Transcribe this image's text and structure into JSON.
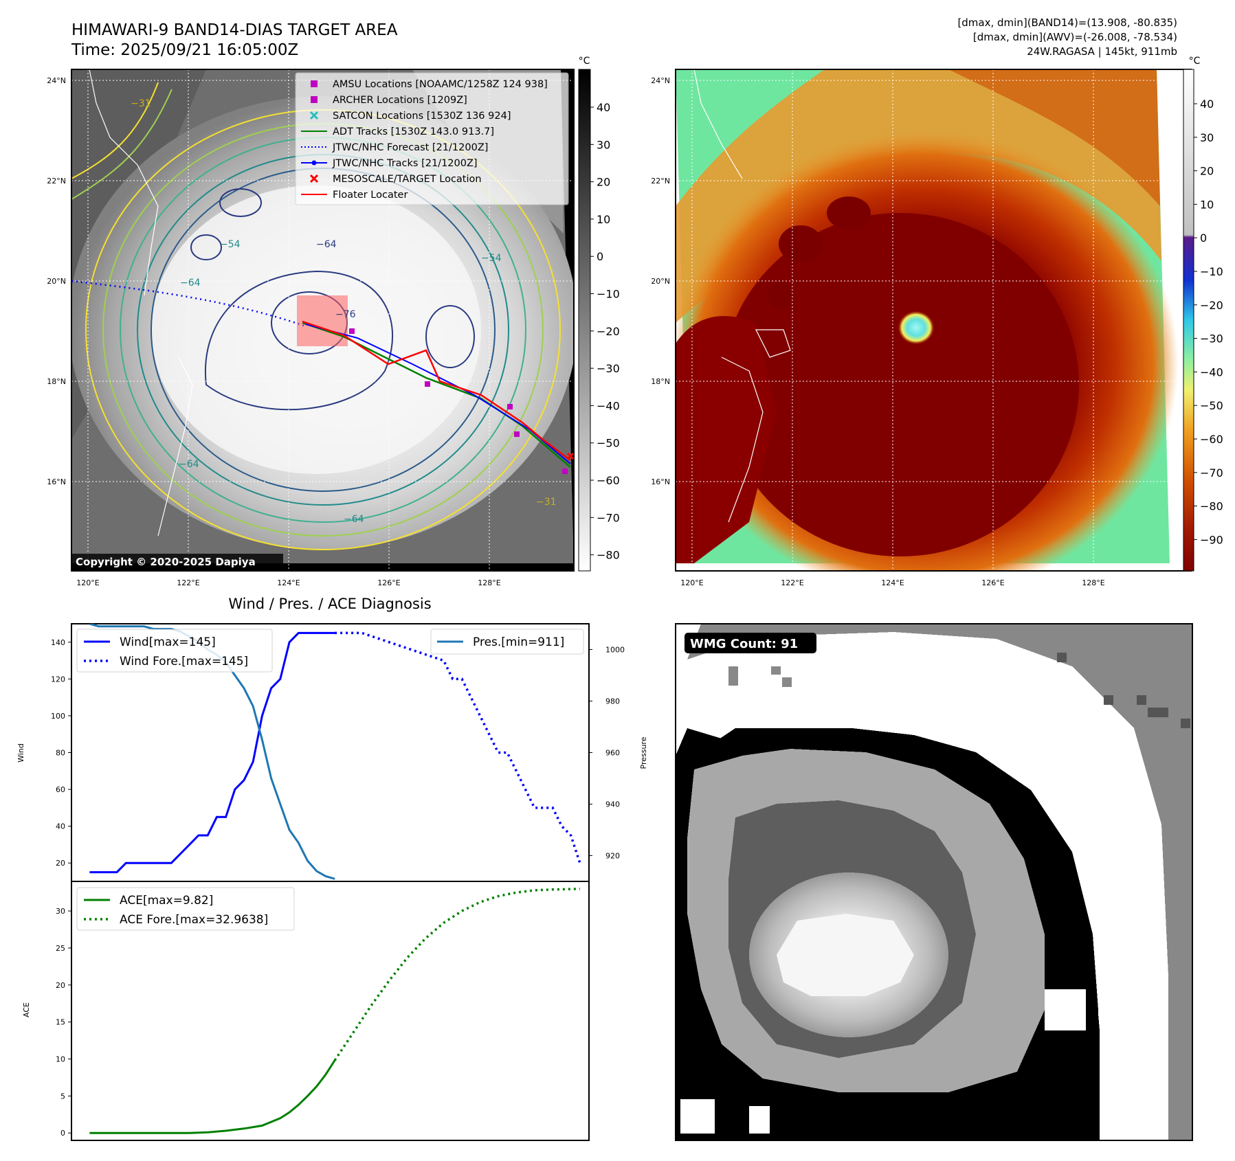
{
  "header": {
    "title_line1": "HIMAWARI-9 BAND14-DIAS TARGET AREA",
    "title_line2": "Time: 2025/09/21 16:05:00Z",
    "info_line1": "[dmax, dmin](BAND14)=(13.908, -80.835)",
    "info_line2": "[dmax, dmin](AWV)=(-26.008, -78.534)",
    "info_line3": "24W.RAGASA | 145kt, 911mb"
  },
  "ir_panel": {
    "colorbar_unit": "°C",
    "colorbar_ticks": [
      "40",
      "30",
      "20",
      "10",
      "0",
      "−10",
      "−20",
      "−30",
      "−40",
      "−50",
      "−60",
      "−70",
      "−80"
    ],
    "lat_labels": [
      "24°N",
      "22°N",
      "20°N",
      "18°N",
      "16°N"
    ],
    "lon_labels": [
      "120°E",
      "122°E",
      "124°E",
      "126°E",
      "128°E"
    ],
    "contour_labels": [
      "−64",
      "−76",
      "−64",
      "−64",
      "−31",
      "−31",
      "−54",
      "−54",
      "−64"
    ],
    "copyright": "Copyright © 2020-2025 Dapiya",
    "legend": [
      {
        "label": "AMSU Locations [NOAAMC/1258Z 124 938]",
        "marker": "square",
        "color": "#c000c0"
      },
      {
        "label": "ARCHER Locations [1209Z]",
        "marker": "square",
        "color": "#c000c0"
      },
      {
        "label": "SATCON Locations [1530Z 136 924]",
        "marker": "x",
        "color": "#20c0c0"
      },
      {
        "label": "ADT Tracks [1530Z 143.0 913.7]",
        "marker": "line",
        "color": "#008000"
      },
      {
        "label": "JTWC/NHC Forecast [21/1200Z]",
        "marker": "dotted",
        "color": "#0000ff"
      },
      {
        "label": "JTWC/NHC Tracks [21/1200Z]",
        "marker": "dotline",
        "color": "#0000ff"
      },
      {
        "label": "MESOSCALE/TARGET Location",
        "marker": "x",
        "color": "#ff0000"
      },
      {
        "label": "Floater Locater",
        "marker": "line",
        "color": "#ff0000"
      }
    ]
  },
  "awv_panel": {
    "colorbar_unit": "°C",
    "colorbar_ticks": [
      "40",
      "30",
      "20",
      "10",
      "0",
      "−10",
      "−20",
      "−30",
      "−40",
      "−50",
      "−60",
      "−70",
      "−80",
      "−90"
    ],
    "lat_labels": [
      "24°N",
      "22°N",
      "20°N",
      "18°N",
      "16°N"
    ],
    "lon_labels": [
      "120°E",
      "122°E",
      "124°E",
      "126°E",
      "128°E"
    ]
  },
  "diag_panel": {
    "title": "Wind / Pres. / ACE Diagnosis",
    "wind_ylabel": "Wind",
    "pres_ylabel": "Pressure",
    "ace_ylabel": "ACE",
    "wind_legend": "Wind[max=145]",
    "wind_fore_legend": "Wind Fore.[max=145]",
    "pres_legend": "Pres.[min=911]",
    "ace_legend": "ACE[max=9.82]",
    "ace_fore_legend": "ACE Fore.[max=32.9638]"
  },
  "wmg_panel": {
    "badge": "WMG Count: 91"
  },
  "chart_data": [
    {
      "type": "line",
      "title": "Wind / Pres. / ACE Diagnosis",
      "ylabel": "Wind",
      "ylim": [
        10,
        150
      ],
      "yticks": [
        20,
        40,
        60,
        80,
        100,
        120,
        140
      ],
      "xlim": [
        -2,
        55
      ],
      "series": [
        {
          "name": "Wind[max=145]",
          "color": "#0000ff",
          "style": "solid",
          "x": [
            0,
            2,
            3,
            4,
            5,
            6,
            7,
            8,
            9,
            10,
            11,
            12,
            13,
            14,
            15,
            16,
            17,
            18,
            19,
            20,
            21,
            22,
            23,
            24,
            25,
            26,
            27
          ],
          "y": [
            15,
            15,
            15,
            20,
            20,
            20,
            20,
            20,
            20,
            25,
            30,
            35,
            35,
            45,
            45,
            60,
            65,
            75,
            100,
            115,
            120,
            140,
            145,
            145,
            145,
            145,
            145
          ]
        },
        {
          "name": "Wind Fore.[max=145]",
          "color": "#0000ff",
          "style": "dotted",
          "x": [
            27,
            30,
            33,
            36,
            39,
            40,
            41,
            42,
            43,
            44,
            45,
            46,
            47,
            48,
            49,
            50,
            51,
            52,
            53,
            54
          ],
          "y": [
            145,
            145,
            140,
            135,
            130,
            120,
            120,
            110,
            100,
            90,
            80,
            80,
            70,
            60,
            50,
            50,
            50,
            40,
            35,
            20
          ]
        }
      ]
    },
    {
      "type": "line",
      "ylabel": "Pressure",
      "ylim": [
        910,
        1010
      ],
      "yticks": [
        920,
        940,
        960,
        980,
        1000
      ],
      "series": [
        {
          "name": "Pres.[min=911]",
          "color": "#1f77b4",
          "style": "solid",
          "x": [
            0,
            1,
            2,
            3,
            4,
            5,
            6,
            7,
            8,
            9,
            10,
            11,
            12,
            13,
            14,
            15,
            16,
            17,
            18,
            19,
            20,
            21,
            22,
            23,
            24,
            25,
            26,
            27
          ],
          "y": [
            1010,
            1009,
            1009,
            1009,
            1009,
            1009,
            1009,
            1008,
            1008,
            1008,
            1007,
            1005,
            1003,
            1000,
            998,
            995,
            990,
            985,
            978,
            965,
            950,
            940,
            930,
            925,
            918,
            914,
            912,
            911
          ]
        }
      ]
    },
    {
      "type": "line",
      "ylabel": "ACE",
      "ylim": [
        -1,
        34
      ],
      "yticks": [
        0,
        5,
        10,
        15,
        20,
        25,
        30
      ],
      "series": [
        {
          "name": "ACE[max=9.82]",
          "color": "#008000",
          "style": "solid",
          "x": [
            0,
            4,
            8,
            11,
            13,
            15,
            17,
            19,
            20,
            21,
            22,
            23,
            24,
            25,
            26,
            27
          ],
          "y": [
            0,
            0,
            0,
            0,
            0.1,
            0.3,
            0.6,
            1.0,
            1.5,
            2.0,
            2.8,
            3.8,
            5.0,
            6.3,
            7.9,
            9.82
          ]
        },
        {
          "name": "ACE Fore.[max=32.9638]",
          "color": "#008000",
          "style": "dotted",
          "x": [
            27,
            29,
            31,
            33,
            35,
            37,
            39,
            41,
            43,
            45,
            47,
            49,
            51,
            53,
            54
          ],
          "y": [
            9.82,
            13.5,
            17.2,
            20.6,
            23.7,
            26.3,
            28.4,
            30.0,
            31.2,
            32.0,
            32.5,
            32.8,
            32.9,
            32.96,
            33.0
          ]
        }
      ]
    }
  ]
}
